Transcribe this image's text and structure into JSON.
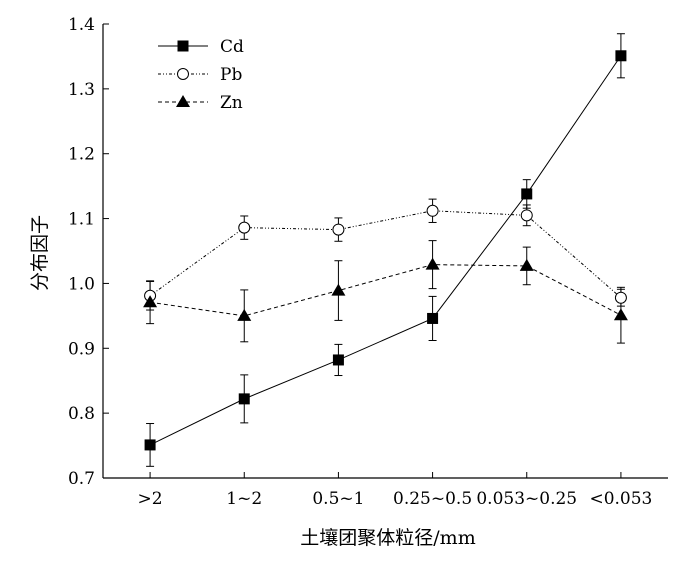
{
  "chart_data": {
    "type": "line",
    "title": "",
    "xlabel": "土壤团聚体粒径/mm",
    "ylabel": "分布因子",
    "categories": [
      ">2",
      "1~2",
      "0.5~1",
      "0.25~0.5",
      "0.053~0.25",
      "<0.053"
    ],
    "ylim": [
      0.7,
      1.4
    ],
    "yticks": [
      "0.7",
      "0.8",
      "0.9",
      "1.0",
      "1.1",
      "1.2",
      "1.3",
      "1.4"
    ],
    "grid": false,
    "legend": "top-left",
    "series": [
      {
        "name": "Cd",
        "marker": "filled-square",
        "line": "solid",
        "values": [
          0.751,
          0.822,
          0.882,
          0.946,
          1.138,
          1.351
        ],
        "errors": [
          0.033,
          0.037,
          0.024,
          0.034,
          0.022,
          0.034
        ]
      },
      {
        "name": "Pb",
        "marker": "open-circle",
        "line": "dash-dot-dot",
        "values": [
          0.981,
          1.086,
          1.083,
          1.112,
          1.105,
          0.978
        ],
        "errors": [
          0.022,
          0.018,
          0.018,
          0.018,
          0.016,
          0.013
        ]
      },
      {
        "name": "Zn",
        "marker": "filled-triangle",
        "line": "dashed",
        "values": [
          0.971,
          0.95,
          0.989,
          1.029,
          1.027,
          0.951
        ],
        "errors": [
          0.033,
          0.04,
          0.046,
          0.037,
          0.029,
          0.043
        ]
      }
    ]
  }
}
